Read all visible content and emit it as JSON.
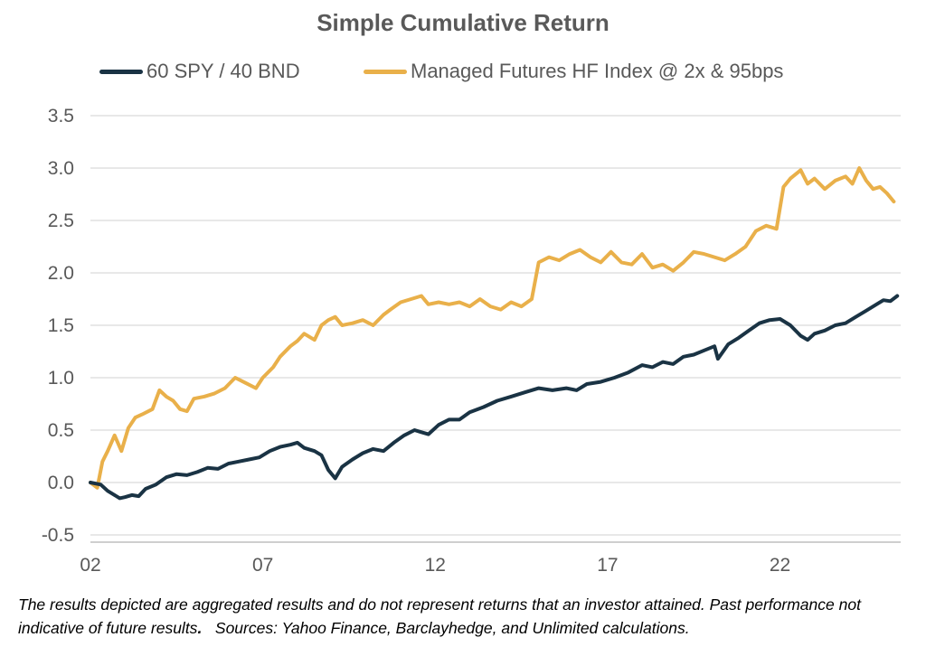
{
  "chart_data": {
    "type": "line",
    "title": "Simple Cumulative Return",
    "xlabel": "",
    "ylabel": "",
    "xlim": [
      2002.0,
      2025.5
    ],
    "ylim": [
      -0.5,
      3.5
    ],
    "x_ticks": [
      2002,
      2007,
      2012,
      2017,
      2022
    ],
    "x_tick_labels": [
      "02",
      "07",
      "12",
      "17",
      "22"
    ],
    "y_ticks": [
      -0.5,
      0.0,
      0.5,
      1.0,
      1.5,
      2.0,
      2.5,
      3.0,
      3.5
    ],
    "y_tick_labels": [
      "-0.5",
      "0.0",
      "0.5",
      "1.0",
      "1.5",
      "2.0",
      "2.5",
      "3.0",
      "3.5"
    ],
    "grid": "horizontal",
    "legend_position": "top",
    "series": [
      {
        "name": "60 SPY / 40 BND",
        "color": "#1a3344",
        "x": [
          2002.0,
          2002.3,
          2002.5,
          2002.7,
          2002.85,
          2003.0,
          2003.2,
          2003.4,
          2003.6,
          2003.9,
          2004.2,
          2004.5,
          2004.8,
          2005.1,
          2005.4,
          2005.7,
          2006.0,
          2006.3,
          2006.6,
          2006.9,
          2007.2,
          2007.5,
          2007.8,
          2008.0,
          2008.2,
          2008.5,
          2008.7,
          2008.9,
          2009.1,
          2009.3,
          2009.6,
          2009.9,
          2010.2,
          2010.5,
          2010.8,
          2011.1,
          2011.4,
          2011.6,
          2011.8,
          2012.1,
          2012.4,
          2012.7,
          2013.0,
          2013.4,
          2013.8,
          2014.2,
          2014.6,
          2015.0,
          2015.4,
          2015.8,
          2016.1,
          2016.4,
          2016.8,
          2017.2,
          2017.6,
          2018.0,
          2018.3,
          2018.6,
          2018.9,
          2019.2,
          2019.5,
          2019.8,
          2020.1,
          2020.2,
          2020.5,
          2020.8,
          2021.1,
          2021.4,
          2021.7,
          2022.0,
          2022.3,
          2022.6,
          2022.8,
          2023.0,
          2023.3,
          2023.6,
          2023.9,
          2024.2,
          2024.5,
          2024.8,
          2025.0,
          2025.2,
          2025.4
        ],
        "y": [
          0.0,
          -0.02,
          -0.08,
          -0.12,
          -0.15,
          -0.14,
          -0.12,
          -0.13,
          -0.06,
          -0.02,
          0.05,
          0.08,
          0.07,
          0.1,
          0.14,
          0.13,
          0.18,
          0.2,
          0.22,
          0.24,
          0.3,
          0.34,
          0.36,
          0.38,
          0.33,
          0.3,
          0.26,
          0.12,
          0.04,
          0.15,
          0.22,
          0.28,
          0.32,
          0.3,
          0.38,
          0.45,
          0.5,
          0.48,
          0.46,
          0.55,
          0.6,
          0.6,
          0.67,
          0.72,
          0.78,
          0.82,
          0.86,
          0.9,
          0.88,
          0.9,
          0.88,
          0.94,
          0.96,
          1.0,
          1.05,
          1.12,
          1.1,
          1.15,
          1.13,
          1.2,
          1.22,
          1.26,
          1.3,
          1.18,
          1.32,
          1.38,
          1.45,
          1.52,
          1.55,
          1.56,
          1.5,
          1.4,
          1.36,
          1.42,
          1.45,
          1.5,
          1.52,
          1.58,
          1.64,
          1.7,
          1.74,
          1.73,
          1.78
        ]
      },
      {
        "name": "Managed Futures HF Index @ 2x & 95bps",
        "color": "#e9b04a",
        "x": [
          2002.0,
          2002.2,
          2002.35,
          2002.5,
          2002.7,
          2002.9,
          2003.1,
          2003.3,
          2003.5,
          2003.8,
          2004.0,
          2004.2,
          2004.4,
          2004.6,
          2004.8,
          2005.0,
          2005.3,
          2005.6,
          2005.9,
          2006.2,
          2006.5,
          2006.8,
          2007.0,
          2007.3,
          2007.5,
          2007.8,
          2008.0,
          2008.2,
          2008.5,
          2008.7,
          2008.9,
          2009.1,
          2009.3,
          2009.6,
          2009.9,
          2010.2,
          2010.5,
          2010.7,
          2011.0,
          2011.3,
          2011.6,
          2011.8,
          2012.1,
          2012.4,
          2012.7,
          2013.0,
          2013.3,
          2013.6,
          2013.9,
          2014.2,
          2014.5,
          2014.8,
          2015.0,
          2015.3,
          2015.6,
          2015.9,
          2016.2,
          2016.5,
          2016.8,
          2017.1,
          2017.4,
          2017.7,
          2018.0,
          2018.3,
          2018.6,
          2018.9,
          2019.2,
          2019.5,
          2019.8,
          2020.1,
          2020.4,
          2020.7,
          2021.0,
          2021.3,
          2021.6,
          2021.9,
          2022.1,
          2022.3,
          2022.6,
          2022.8,
          2023.0,
          2023.3,
          2023.6,
          2023.9,
          2024.1,
          2024.3,
          2024.5,
          2024.7,
          2024.9,
          2025.1,
          2025.3
        ],
        "y": [
          0.0,
          -0.05,
          0.2,
          0.3,
          0.45,
          0.3,
          0.52,
          0.62,
          0.65,
          0.7,
          0.88,
          0.82,
          0.78,
          0.7,
          0.68,
          0.8,
          0.82,
          0.85,
          0.9,
          1.0,
          0.95,
          0.9,
          1.0,
          1.1,
          1.2,
          1.3,
          1.35,
          1.42,
          1.36,
          1.5,
          1.55,
          1.58,
          1.5,
          1.52,
          1.55,
          1.5,
          1.6,
          1.65,
          1.72,
          1.75,
          1.78,
          1.7,
          1.72,
          1.7,
          1.72,
          1.68,
          1.75,
          1.68,
          1.65,
          1.72,
          1.68,
          1.75,
          2.1,
          2.15,
          2.12,
          2.18,
          2.22,
          2.15,
          2.1,
          2.2,
          2.1,
          2.08,
          2.18,
          2.05,
          2.08,
          2.02,
          2.1,
          2.2,
          2.18,
          2.15,
          2.12,
          2.18,
          2.25,
          2.4,
          2.45,
          2.42,
          2.82,
          2.9,
          2.98,
          2.85,
          2.9,
          2.8,
          2.88,
          2.92,
          2.85,
          3.0,
          2.88,
          2.8,
          2.82,
          2.76,
          2.68
        ]
      }
    ]
  },
  "footnote": {
    "part1": "The results depicted are aggregated results and do not represent returns that an investor attained. Past performance not indicative of future results",
    "period": ".",
    "part2": "   Sources: Yahoo Finance, Barclayhedge, and Unlimited calculations."
  }
}
